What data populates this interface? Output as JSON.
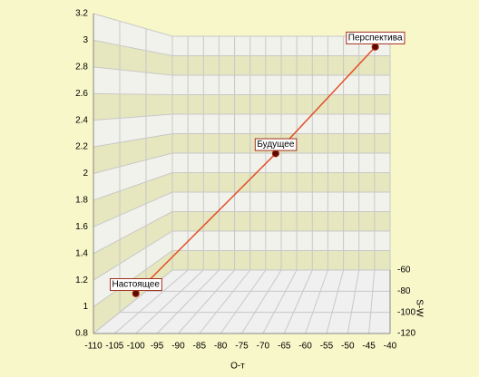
{
  "chart_data": {
    "type": "line3d",
    "xlabel": "О-т",
    "zlabel": "S-W",
    "xlim": [
      -110,
      -40
    ],
    "xticks": [
      -110,
      -105,
      -100,
      -95,
      -90,
      -85,
      -80,
      -75,
      -70,
      -65,
      -60,
      -55,
      -50,
      -45,
      -40
    ],
    "ylim": [
      0.8,
      3.2
    ],
    "yticks": [
      0.8,
      1,
      1.2,
      1.4,
      1.6,
      1.8,
      2,
      2.2,
      2.4,
      2.6,
      2.8,
      3,
      3.2
    ],
    "zlim": [
      -120,
      -60
    ],
    "zticks": [
      -120,
      -100,
      -80,
      -60
    ],
    "grid": true,
    "series": [
      {
        "color": "#e0502a",
        "x": [
          -100,
          -67,
          -43.5
        ],
        "values": [
          1.1,
          2.15,
          2.95
        ],
        "z": [
          -120,
          -120,
          -120
        ],
        "labels": [
          "Настоящее",
          "Будущее",
          "Перспектива"
        ]
      }
    ]
  }
}
